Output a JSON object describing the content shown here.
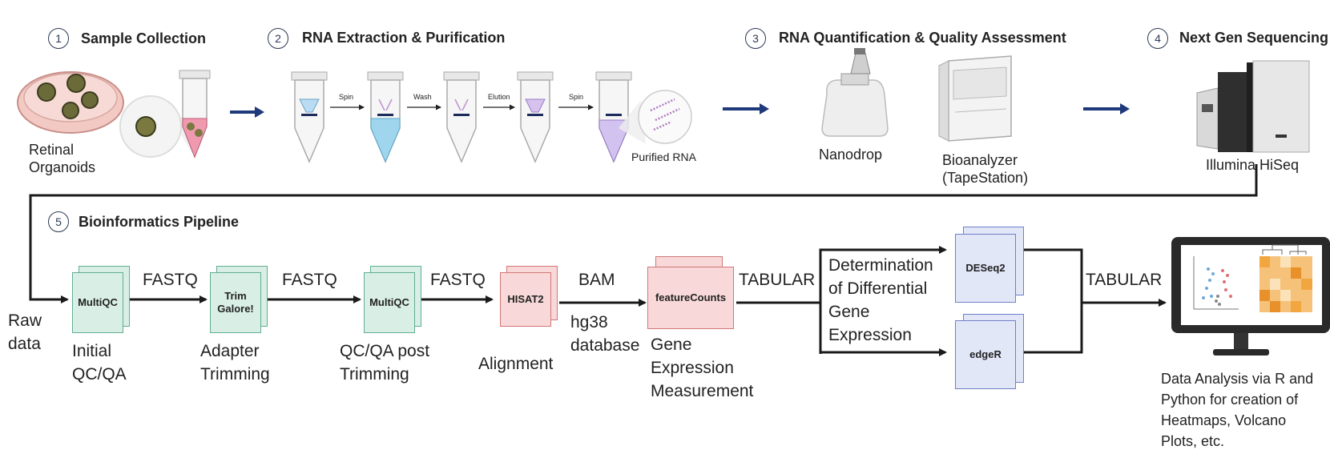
{
  "steps": [
    {
      "num": "1",
      "title": "Sample Collection"
    },
    {
      "num": "2",
      "title": "RNA Extraction & Purification"
    },
    {
      "num": "3",
      "title": "RNA Quantification & Quality Assessment"
    },
    {
      "num": "4",
      "title": "Next Gen Sequencing"
    },
    {
      "num": "5",
      "title": "Bioinformatics Pipeline"
    }
  ],
  "sample": {
    "label_line1": "Retinal",
    "label_line2": "Organoids"
  },
  "extraction": {
    "arrow_labels": [
      "Spin",
      "Wash",
      "Elution",
      "Spin"
    ],
    "purified_label": "Purified RNA"
  },
  "quant": {
    "nanodrop_label": "Nanodrop",
    "bioanalyzer_line1": "Bioanalyzer",
    "bioanalyzer_line2": "(TapeStation)"
  },
  "sequencing": {
    "label": "Illumina HiSeq"
  },
  "pipeline": {
    "raw_line1": "Raw",
    "raw_line2": "data",
    "tools": {
      "multiqc1": "MultiQC",
      "trim_line1": "Trim",
      "trim_line2": "Galore!",
      "multiqc2": "MultiQC",
      "hisat2": "HISAT2",
      "featurecounts": "featureCounts",
      "deseq2": "DESeq2",
      "edger": "edgeR"
    },
    "formats": {
      "f1": "FASTQ",
      "f2": "FASTQ",
      "f3": "FASTQ",
      "bam": "BAM",
      "tab1": "TABULAR",
      "tab2": "TABULAR"
    },
    "captions": {
      "initial_line1": "Initial",
      "initial_line2": "QC/QA",
      "adapter_line1": "Adapter",
      "adapter_line2": "Trimming",
      "qcpost_line1": "QC/QA post",
      "qcpost_line2": "Trimming",
      "alignment": "Alignment",
      "hg38_line1": "hg38",
      "hg38_line2": "database",
      "gene_line1": "Gene",
      "gene_line2": "Expression",
      "gene_line3": "Measurement",
      "dge_line1": "Determination",
      "dge_line2": "of Differential",
      "dge_line3": "Gene",
      "dge_line4": "Expression",
      "analysis_line1": "Data Analysis via R and",
      "analysis_line2": "Python for creation of",
      "analysis_line3": "Heatmaps, Volcano",
      "analysis_line4": "Plots, etc."
    }
  },
  "colors": {
    "arrow_navy": "#1f3a7a",
    "green_fill": "#d9efe6",
    "red_fill": "#f8d8d8",
    "blue_fill": "#e2e7f8",
    "heatmap_orange": "#f2a640"
  }
}
